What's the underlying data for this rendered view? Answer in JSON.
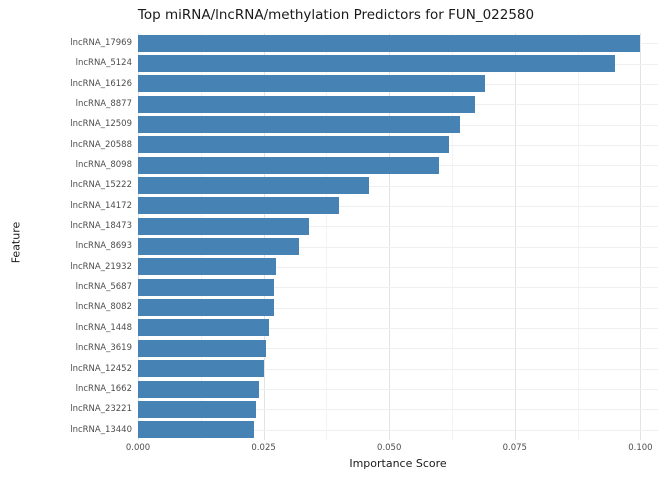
{
  "chart_data": {
    "type": "bar",
    "orientation": "horizontal",
    "title": "Top miRNA/lncRNA/methylation Predictors for FUN_022580",
    "xlabel": "Importance Score",
    "ylabel": "Feature",
    "xlim": [
      0,
      0.1
    ],
    "grid": true,
    "legend": false,
    "bar_color": "#4682b4",
    "x_tick_values": [
      0,
      0.025,
      0.05,
      0.075,
      0.1
    ],
    "x_tick_labels": [
      "0.000",
      "0.025",
      "0.050",
      "0.075",
      "0.100"
    ],
    "categories": [
      "lncRNA_17969",
      "lncRNA_5124",
      "lncRNA_16126",
      "lncRNA_8877",
      "lncRNA_12509",
      "lncRNA_20588",
      "lncRNA_8098",
      "lncRNA_15222",
      "lncRNA_14172",
      "lncRNA_18473",
      "lncRNA_8693",
      "lncRNA_21932",
      "lncRNA_5687",
      "lncRNA_8082",
      "lncRNA_1448",
      "lncRNA_3619",
      "lncRNA_12452",
      "lncRNA_1662",
      "lncRNA_23221",
      "lncRNA_13440"
    ],
    "values": [
      0.1,
      0.095,
      0.069,
      0.067,
      0.064,
      0.062,
      0.06,
      0.046,
      0.04,
      0.034,
      0.032,
      0.0275,
      0.027,
      0.027,
      0.026,
      0.0255,
      0.025,
      0.024,
      0.0235,
      0.023
    ]
  }
}
